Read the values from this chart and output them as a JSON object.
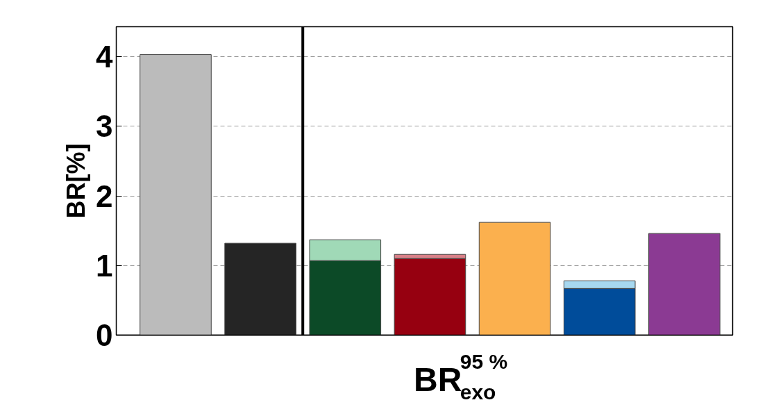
{
  "chart_data": {
    "type": "bar",
    "stacked": true,
    "categories": [
      null,
      null,
      null,
      null,
      null,
      null,
      null
    ],
    "series": [
      {
        "colors": [
          "#bbbbbb",
          "#252525",
          "#0c4a27",
          "#960010",
          "#fbb04e",
          "#004c9a",
          "#8b3a93"
        ],
        "values": [
          4.03,
          1.32,
          1.07,
          1.1,
          1.62,
          0.67,
          1.46
        ]
      },
      {
        "colors": [
          "#bbbbbb",
          "#252525",
          "#a0d9b7",
          "#d98088",
          "#fbb04e",
          "#a7d8f0",
          "#8b3a93"
        ],
        "values": [
          null,
          null,
          0.3,
          0.06,
          null,
          0.11,
          null
        ]
      }
    ],
    "ylim": [
      0,
      4.43
    ],
    "yticks": [
      0,
      1,
      2,
      3,
      4
    ],
    "ylabel": "BR[%]",
    "xlabel": "BR$^{95 %}$$_{exo}$",
    "grid": "y",
    "tick_labels": "y"
  }
}
